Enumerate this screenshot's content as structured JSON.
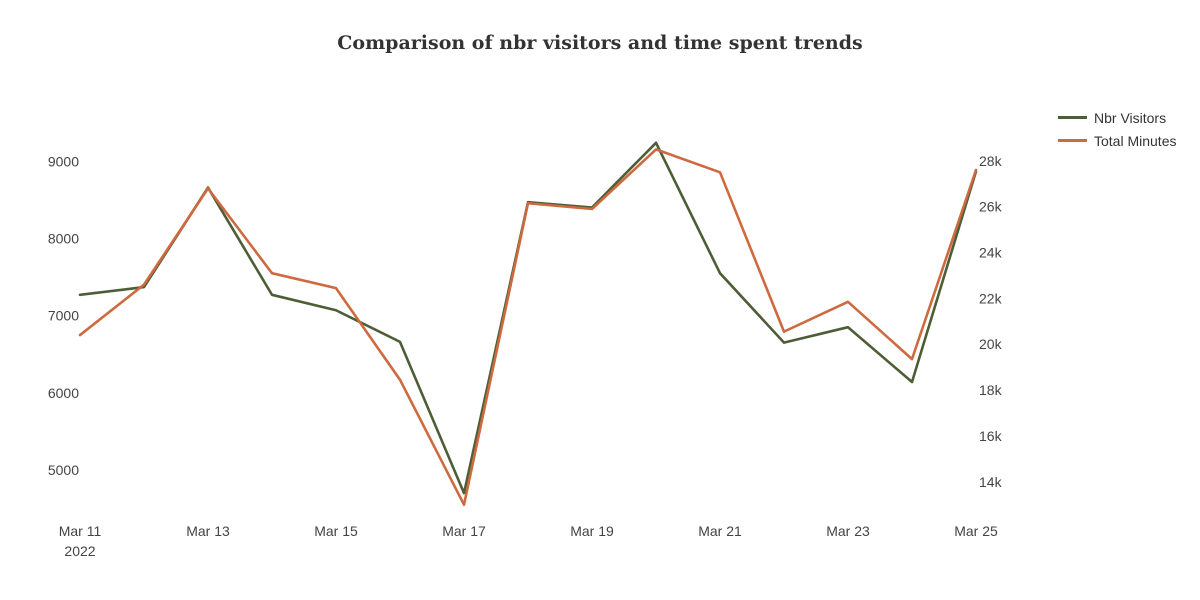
{
  "chart_data": {
    "type": "line",
    "title": "Comparison of nbr visitors and time spent trends",
    "x": [
      "2022-03-11",
      "2022-03-12",
      "2022-03-13",
      "2022-03-14",
      "2022-03-15",
      "2022-03-16",
      "2022-03-17",
      "2022-03-18",
      "2022-03-19",
      "2022-03-20",
      "2022-03-21",
      "2022-03-22",
      "2022-03-23",
      "2022-03-24",
      "2022-03-25"
    ],
    "x_tick_labels": [
      {
        "date": "2022-03-11",
        "line1": "Mar 11",
        "line2": "2022"
      },
      {
        "date": "2022-03-13",
        "line1": "Mar 13"
      },
      {
        "date": "2022-03-15",
        "line1": "Mar 15"
      },
      {
        "date": "2022-03-17",
        "line1": "Mar 17"
      },
      {
        "date": "2022-03-19",
        "line1": "Mar 19"
      },
      {
        "date": "2022-03-21",
        "line1": "Mar 21"
      },
      {
        "date": "2022-03-23",
        "line1": "Mar 23"
      },
      {
        "date": "2022-03-25",
        "line1": "Mar 25"
      }
    ],
    "y_left": {
      "range": [
        4520,
        9600
      ],
      "ticks": [
        5000,
        6000,
        7000,
        8000,
        9000
      ],
      "tick_labels": [
        "5000",
        "6000",
        "7000",
        "8000",
        "9000"
      ]
    },
    "y_right": {
      "range": [
        12900,
        30000
      ],
      "ticks": [
        14000,
        16000,
        18000,
        20000,
        22000,
        24000,
        26000,
        28000
      ],
      "tick_labels": [
        "14k",
        "16k",
        "18k",
        "20k",
        "22k",
        "24k",
        "26k",
        "28k"
      ]
    },
    "series": [
      {
        "name": "Nbr Visitors",
        "axis": "left",
        "color": "#4d5e37",
        "values": [
          7270,
          7370,
          8660,
          7270,
          7070,
          6660,
          4700,
          8470,
          8400,
          9240,
          7550,
          6650,
          6850,
          6140,
          8870
        ]
      },
      {
        "name": "Total Minutes",
        "axis": "right",
        "color": "#cd6a3f",
        "values": [
          20400,
          22600,
          26800,
          23100,
          22450,
          18450,
          13000,
          26150,
          25900,
          28500,
          27500,
          20550,
          21850,
          19350,
          27600
        ]
      }
    ],
    "grid": false,
    "legend_position": "top-right"
  }
}
